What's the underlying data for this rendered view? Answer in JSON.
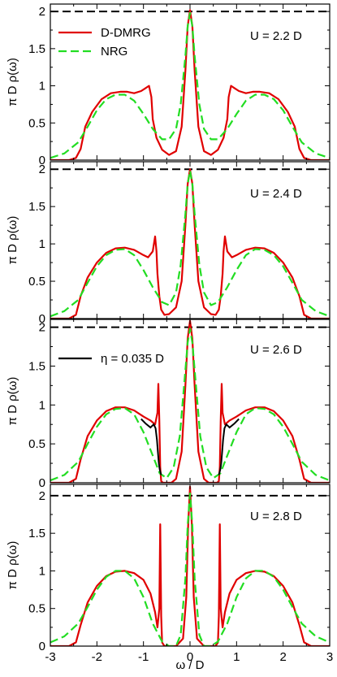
{
  "figure": {
    "xlabel": "ω / D",
    "ylabel": "π D ρ(ω)"
  },
  "chart_data": [
    {
      "type": "line",
      "panel": "U = 2.2 D",
      "annotation": "U = 2.2 D",
      "xlim": [
        -3,
        3
      ],
      "ylim": [
        0,
        2.1
      ],
      "xticks": [
        "-3",
        "-2",
        "-1",
        "0",
        "1",
        "2",
        "3"
      ],
      "yticks": [
        "0",
        "0.5",
        "1",
        "1.5",
        "2"
      ],
      "legend": {
        "placement": "top-left",
        "entries": [
          "D-DMRG",
          "NRG"
        ]
      },
      "reference_line": {
        "y": 2,
        "style": "dashed",
        "color": "#000000"
      },
      "series": [
        {
          "name": "D-DMRG",
          "color": "#e00000",
          "style": "solid",
          "x": [
            -3.0,
            -2.8,
            -2.6,
            -2.45,
            -2.35,
            -2.25,
            -2.1,
            -1.9,
            -1.7,
            -1.5,
            -1.35,
            -1.2,
            -1.05,
            -0.95,
            -0.88,
            -0.83,
            -0.8,
            -0.72,
            -0.6,
            -0.45,
            -0.3,
            -0.18,
            -0.1,
            -0.05,
            0.0,
            0.05,
            0.1,
            0.18,
            0.3,
            0.45,
            0.6,
            0.72,
            0.8,
            0.83,
            0.88,
            0.95,
            1.05,
            1.2,
            1.35,
            1.5,
            1.7,
            1.9,
            2.1,
            2.25,
            2.35,
            2.45,
            2.6,
            2.8,
            3.0
          ],
          "y": [
            0.0,
            0.0,
            0.0,
            0.03,
            0.15,
            0.45,
            0.65,
            0.82,
            0.9,
            0.92,
            0.92,
            0.9,
            0.93,
            0.97,
            1.0,
            0.85,
            0.55,
            0.3,
            0.14,
            0.07,
            0.12,
            0.45,
            1.2,
            1.8,
            2.02,
            1.8,
            1.2,
            0.45,
            0.12,
            0.07,
            0.14,
            0.3,
            0.55,
            0.85,
            1.0,
            0.97,
            0.93,
            0.9,
            0.92,
            0.92,
            0.9,
            0.82,
            0.65,
            0.45,
            0.15,
            0.03,
            0.0,
            0.0,
            0.0
          ]
        },
        {
          "name": "NRG",
          "color": "#22dd22",
          "style": "dashed",
          "x": [
            -3.0,
            -2.7,
            -2.4,
            -2.2,
            -2.0,
            -1.8,
            -1.6,
            -1.4,
            -1.2,
            -1.0,
            -0.8,
            -0.6,
            -0.45,
            -0.3,
            -0.2,
            -0.1,
            -0.05,
            0.0,
            0.05,
            0.1,
            0.2,
            0.3,
            0.45,
            0.6,
            0.8,
            1.0,
            1.2,
            1.4,
            1.6,
            1.8,
            2.0,
            2.2,
            2.4,
            2.7,
            3.0
          ],
          "y": [
            0.03,
            0.09,
            0.24,
            0.45,
            0.67,
            0.82,
            0.88,
            0.88,
            0.8,
            0.62,
            0.42,
            0.28,
            0.28,
            0.42,
            0.75,
            1.4,
            1.8,
            1.98,
            1.8,
            1.4,
            0.75,
            0.42,
            0.28,
            0.28,
            0.42,
            0.62,
            0.8,
            0.88,
            0.88,
            0.82,
            0.67,
            0.45,
            0.24,
            0.09,
            0.03
          ]
        }
      ]
    },
    {
      "type": "line",
      "panel": "U = 2.4 D",
      "annotation": "U = 2.4 D",
      "xlim": [
        -3,
        3
      ],
      "ylim": [
        0,
        2.1
      ],
      "xticks": [
        "-3",
        "-2",
        "-1",
        "0",
        "1",
        "2",
        "3"
      ],
      "yticks": [
        "0",
        "0.5",
        "1",
        "1.5",
        "2"
      ],
      "reference_line": {
        "y": 2,
        "style": "dashed",
        "color": "#000000"
      },
      "series": [
        {
          "name": "D-DMRG",
          "color": "#e00000",
          "style": "solid",
          "x": [
            -3.0,
            -2.8,
            -2.6,
            -2.45,
            -2.35,
            -2.2,
            -2.0,
            -1.8,
            -1.6,
            -1.4,
            -1.2,
            -1.0,
            -0.9,
            -0.8,
            -0.75,
            -0.72,
            -0.7,
            -0.66,
            -0.62,
            -0.55,
            -0.45,
            -0.3,
            -0.18,
            -0.1,
            -0.05,
            0.0,
            0.05,
            0.1,
            0.18,
            0.3,
            0.45,
            0.55,
            0.62,
            0.66,
            0.7,
            0.72,
            0.75,
            0.8,
            0.9,
            1.0,
            1.2,
            1.4,
            1.6,
            1.8,
            2.0,
            2.2,
            2.35,
            2.45,
            2.6,
            2.8,
            3.0
          ],
          "y": [
            0.0,
            0.0,
            0.0,
            0.05,
            0.3,
            0.55,
            0.75,
            0.88,
            0.94,
            0.95,
            0.92,
            0.85,
            0.82,
            0.9,
            1.1,
            0.9,
            0.6,
            0.3,
            0.12,
            0.05,
            0.06,
            0.15,
            0.5,
            1.25,
            1.8,
            2.0,
            1.8,
            1.25,
            0.5,
            0.15,
            0.06,
            0.05,
            0.12,
            0.3,
            0.6,
            0.9,
            1.1,
            0.9,
            0.82,
            0.85,
            0.92,
            0.95,
            0.94,
            0.88,
            0.75,
            0.55,
            0.3,
            0.05,
            0.0,
            0.0,
            0.0
          ]
        },
        {
          "name": "NRG",
          "color": "#22dd22",
          "style": "dashed",
          "x": [
            -3.0,
            -2.7,
            -2.4,
            -2.2,
            -2.0,
            -1.8,
            -1.6,
            -1.4,
            -1.2,
            -1.0,
            -0.8,
            -0.6,
            -0.45,
            -0.3,
            -0.2,
            -0.1,
            -0.05,
            0.0,
            0.05,
            0.1,
            0.2,
            0.3,
            0.45,
            0.6,
            0.8,
            1.0,
            1.2,
            1.4,
            1.6,
            1.8,
            2.0,
            2.2,
            2.4,
            2.7,
            3.0
          ],
          "y": [
            0.03,
            0.1,
            0.25,
            0.48,
            0.7,
            0.85,
            0.92,
            0.93,
            0.85,
            0.65,
            0.42,
            0.22,
            0.18,
            0.35,
            0.72,
            1.4,
            1.8,
            1.98,
            1.8,
            1.4,
            0.72,
            0.35,
            0.18,
            0.22,
            0.42,
            0.65,
            0.85,
            0.93,
            0.92,
            0.85,
            0.7,
            0.48,
            0.25,
            0.1,
            0.03
          ]
        }
      ]
    },
    {
      "type": "line",
      "panel": "U = 2.6 D",
      "annotation": "U = 2.6 D",
      "xlim": [
        -3,
        3
      ],
      "ylim": [
        0,
        2.1
      ],
      "xticks": [
        "-3",
        "-2",
        "-1",
        "0",
        "1",
        "2",
        "3"
      ],
      "yticks": [
        "0",
        "0.5",
        "1",
        "1.5",
        "2"
      ],
      "legend": {
        "placement": "top-left",
        "entries": [
          "η = 0.035 D"
        ]
      },
      "reference_line": {
        "y": 2,
        "style": "dashed",
        "color": "#000000"
      },
      "series": [
        {
          "name": "D-DMRG",
          "color": "#e00000",
          "style": "solid",
          "x": [
            -3.0,
            -2.8,
            -2.6,
            -2.45,
            -2.35,
            -2.2,
            -2.0,
            -1.8,
            -1.6,
            -1.4,
            -1.2,
            -1.0,
            -0.85,
            -0.75,
            -0.7,
            -0.68,
            -0.66,
            -0.64,
            -0.62,
            -0.58,
            -0.5,
            -0.4,
            -0.3,
            -0.18,
            -0.1,
            -0.05,
            0.0,
            0.05,
            0.1,
            0.18,
            0.3,
            0.4,
            0.5,
            0.58,
            0.62,
            0.64,
            0.66,
            0.68,
            0.7,
            0.75,
            0.85,
            1.0,
            1.2,
            1.4,
            1.6,
            1.8,
            2.0,
            2.2,
            2.35,
            2.45,
            2.6,
            2.8,
            3.0
          ],
          "y": [
            0.0,
            0.0,
            0.0,
            0.05,
            0.3,
            0.6,
            0.8,
            0.92,
            0.97,
            0.97,
            0.93,
            0.85,
            0.8,
            0.75,
            0.9,
            1.27,
            0.8,
            0.2,
            0.02,
            0.0,
            0.0,
            0.0,
            0.05,
            0.4,
            1.25,
            1.85,
            2.08,
            1.85,
            1.25,
            0.4,
            0.05,
            0.0,
            0.0,
            0.0,
            0.02,
            0.2,
            0.8,
            1.27,
            0.9,
            0.75,
            0.8,
            0.85,
            0.93,
            0.97,
            0.97,
            0.92,
            0.8,
            0.6,
            0.3,
            0.05,
            0.0,
            0.0,
            0.0
          ]
        },
        {
          "name": "NRG",
          "color": "#22dd22",
          "style": "dashed",
          "x": [
            -3.0,
            -2.7,
            -2.4,
            -2.2,
            -2.0,
            -1.8,
            -1.6,
            -1.4,
            -1.2,
            -1.0,
            -0.8,
            -0.65,
            -0.5,
            -0.35,
            -0.22,
            -0.12,
            -0.05,
            0.0,
            0.05,
            0.12,
            0.22,
            0.35,
            0.5,
            0.65,
            0.8,
            1.0,
            1.2,
            1.4,
            1.6,
            1.8,
            2.0,
            2.2,
            2.4,
            2.7,
            3.0
          ],
          "y": [
            0.03,
            0.1,
            0.27,
            0.5,
            0.72,
            0.88,
            0.95,
            0.96,
            0.88,
            0.65,
            0.35,
            0.12,
            0.06,
            0.2,
            0.6,
            1.3,
            1.8,
            1.98,
            1.8,
            1.3,
            0.6,
            0.2,
            0.06,
            0.12,
            0.35,
            0.65,
            0.88,
            0.96,
            0.95,
            0.88,
            0.72,
            0.5,
            0.27,
            0.1,
            0.03
          ]
        },
        {
          "name": "η = 0.035 D",
          "color": "#000000",
          "style": "solid",
          "x": [
            -1.05,
            -0.95,
            -0.85,
            -0.78,
            -0.74,
            -0.71,
            -0.69,
            -0.67,
            -0.65,
            -0.62,
            0.62,
            0.65,
            0.67,
            0.69,
            0.71,
            0.74,
            0.78,
            0.85,
            0.95,
            1.05
          ],
          "y": [
            0.82,
            0.76,
            0.71,
            0.75,
            0.7,
            0.55,
            0.4,
            0.25,
            0.17,
            0.1,
            0.1,
            0.17,
            0.25,
            0.4,
            0.55,
            0.7,
            0.75,
            0.71,
            0.76,
            0.82
          ]
        }
      ]
    },
    {
      "type": "line",
      "panel": "U = 2.8 D",
      "annotation": "U = 2.8 D",
      "xlim": [
        -3,
        3
      ],
      "ylim": [
        0,
        2.15
      ],
      "xticks": [
        "-3",
        "-2",
        "-1",
        "0",
        "1",
        "2",
        "3"
      ],
      "yticks": [
        "0",
        "0.5",
        "1",
        "1.5",
        "2"
      ],
      "reference_line": {
        "y": 2,
        "style": "dashed",
        "color": "#000000"
      },
      "series": [
        {
          "name": "D-DMRG",
          "color": "#e00000",
          "style": "solid",
          "x": [
            -3.0,
            -2.8,
            -2.6,
            -2.45,
            -2.35,
            -2.2,
            -2.0,
            -1.8,
            -1.6,
            -1.4,
            -1.2,
            -1.0,
            -0.85,
            -0.75,
            -0.7,
            -0.66,
            -0.64,
            -0.62,
            -0.6,
            -0.55,
            -0.45,
            -0.3,
            -0.15,
            -0.08,
            -0.04,
            0.0,
            0.04,
            0.08,
            0.15,
            0.3,
            0.45,
            0.55,
            0.6,
            0.62,
            0.64,
            0.66,
            0.7,
            0.75,
            0.85,
            1.0,
            1.2,
            1.4,
            1.6,
            1.8,
            2.0,
            2.2,
            2.35,
            2.45,
            2.6,
            2.8,
            3.0
          ],
          "y": [
            0.0,
            0.0,
            0.0,
            0.05,
            0.28,
            0.58,
            0.8,
            0.93,
            0.99,
            1.0,
            0.97,
            0.88,
            0.7,
            0.45,
            0.25,
            0.5,
            1.62,
            0.4,
            0.05,
            0.0,
            0.0,
            0.0,
            0.1,
            0.65,
            1.6,
            2.12,
            1.6,
            0.65,
            0.1,
            0.0,
            0.0,
            0.0,
            0.05,
            0.4,
            1.62,
            0.5,
            0.25,
            0.45,
            0.7,
            0.88,
            0.97,
            1.0,
            0.99,
            0.93,
            0.8,
            0.58,
            0.28,
            0.05,
            0.0,
            0.0,
            0.0
          ]
        },
        {
          "name": "NRG",
          "color": "#22dd22",
          "style": "dashed",
          "x": [
            -3.0,
            -2.7,
            -2.4,
            -2.2,
            -2.0,
            -1.8,
            -1.6,
            -1.4,
            -1.2,
            -1.0,
            -0.8,
            -0.6,
            -0.45,
            -0.3,
            -0.2,
            -0.1,
            -0.05,
            0.0,
            0.05,
            0.1,
            0.2,
            0.3,
            0.45,
            0.6,
            0.8,
            1.0,
            1.2,
            1.4,
            1.6,
            1.8,
            2.0,
            2.2,
            2.4,
            2.7,
            3.0
          ],
          "y": [
            0.05,
            0.13,
            0.3,
            0.52,
            0.75,
            0.92,
            1.0,
            1.0,
            0.9,
            0.65,
            0.3,
            0.06,
            0.0,
            0.0,
            0.15,
            0.9,
            1.6,
            2.03,
            1.6,
            0.9,
            0.15,
            0.0,
            0.0,
            0.06,
            0.3,
            0.65,
            0.9,
            1.0,
            1.0,
            0.92,
            0.75,
            0.52,
            0.3,
            0.13,
            0.05
          ]
        }
      ]
    }
  ]
}
